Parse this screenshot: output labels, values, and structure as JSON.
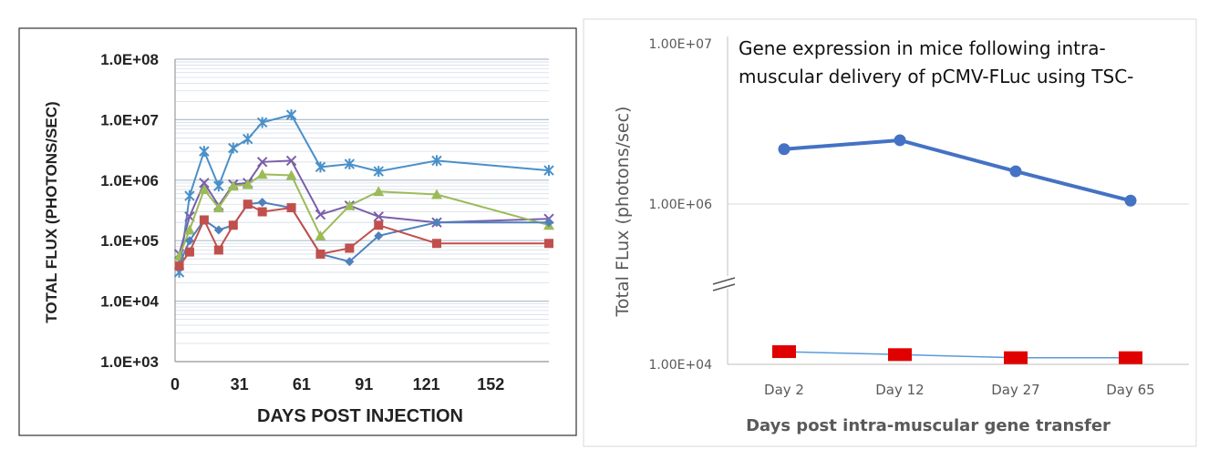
{
  "chart_data": [
    {
      "type": "line",
      "title": "",
      "xlabel": "DAYS POST INJECTION",
      "ylabel": "TOTAL FLUX (PHOTONS/SEC)",
      "y_scale": "log",
      "ylim": [
        1000,
        100000000
      ],
      "xlim": [
        0,
        180
      ],
      "x_tick_labels": [
        "0",
        "31",
        "61",
        "91",
        "121",
        "152"
      ],
      "x_tick_values": [
        0,
        31,
        61,
        91,
        121,
        152
      ],
      "y_tick_labels": [
        "1.0E+03",
        "1.0E+04",
        "1.0E+05",
        "1.0E+06",
        "1.0E+07",
        "1.0E+08"
      ],
      "y_tick_values": [
        1000,
        10000,
        100000,
        1000000,
        10000000,
        100000000
      ],
      "grid": true,
      "legend": "none",
      "series": [
        {
          "color": "#4a90c8",
          "marker": "asterisk",
          "points": [
            [
              2,
              30000
            ],
            [
              7,
              550000
            ],
            [
              14,
              3000000
            ],
            [
              21,
              800000
            ],
            [
              28,
              3400000
            ],
            [
              35,
              4800000
            ],
            [
              42,
              9000000
            ],
            [
              56,
              12000000
            ],
            [
              70,
              1650000
            ],
            [
              84,
              1850000
            ],
            [
              98,
              1400000
            ],
            [
              126,
              2100000
            ],
            [
              180,
              1450000
            ]
          ]
        },
        {
          "color": "#7b5fa8",
          "marker": "x",
          "points": [
            [
              2,
              60000
            ],
            [
              7,
              250000
            ],
            [
              14,
              900000
            ],
            [
              21,
              380000
            ],
            [
              28,
              850000
            ],
            [
              35,
              900000
            ],
            [
              42,
              2000000
            ],
            [
              56,
              2100000
            ],
            [
              70,
              270000
            ],
            [
              84,
              380000
            ],
            [
              98,
              250000
            ],
            [
              126,
              200000
            ],
            [
              180,
              230000
            ]
          ]
        },
        {
          "color": "#9bbb59",
          "marker": "triangle",
          "points": [
            [
              2,
              55000
            ],
            [
              7,
              150000
            ],
            [
              14,
              700000
            ],
            [
              21,
              350000
            ],
            [
              28,
              800000
            ],
            [
              35,
              850000
            ],
            [
              42,
              1250000
            ],
            [
              56,
              1200000
            ],
            [
              70,
              120000
            ],
            [
              84,
              380000
            ],
            [
              98,
              650000
            ],
            [
              126,
              580000
            ],
            [
              180,
              180000
            ]
          ]
        },
        {
          "color": "#4f81bd",
          "marker": "diamond",
          "points": [
            [
              2,
              40000
            ],
            [
              7,
              100000
            ],
            [
              14,
              220000
            ],
            [
              21,
              150000
            ],
            [
              28,
              180000
            ],
            [
              35,
              400000
            ],
            [
              42,
              430000
            ],
            [
              56,
              350000
            ],
            [
              70,
              60000
            ],
            [
              84,
              45000
            ],
            [
              98,
              120000
            ],
            [
              126,
              200000
            ],
            [
              180,
              200000
            ]
          ]
        },
        {
          "color": "#c0504d",
          "marker": "square",
          "points": [
            [
              2,
              38000
            ],
            [
              7,
              65000
            ],
            [
              14,
              220000
            ],
            [
              21,
              70000
            ],
            [
              28,
              180000
            ],
            [
              35,
              400000
            ],
            [
              42,
              300000
            ],
            [
              56,
              350000
            ],
            [
              70,
              60000
            ],
            [
              84,
              75000
            ],
            [
              98,
              180000
            ],
            [
              126,
              90000
            ],
            [
              180,
              90000
            ]
          ]
        }
      ]
    },
    {
      "type": "line",
      "title": "Gene expression in mice following intra-muscular delivery of pCMV-FLuc using TSC-",
      "title_lines": [
        "Gene expression in mice following intra-",
        "muscular delivery of pCMV-FLuc using TSC-"
      ],
      "xlabel": "Days post intra-muscular gene transfer",
      "ylabel": "Total FLux (photons/sec)",
      "y_scale": "log",
      "y_axis_break": true,
      "y_tick_labels": [
        "1.00E+04",
        "1.00E+06",
        "1.00E+07"
      ],
      "categories": [
        "Day 2",
        "Day 12",
        "Day 27",
        "Day 65"
      ],
      "grid": true,
      "legend": "none",
      "series": [
        {
          "color": "#4472c4",
          "marker": "circle",
          "values": [
            2200000,
            2500000,
            1600000,
            1050000
          ]
        },
        {
          "color": "#e00000",
          "marker": "square",
          "line_color": "#5b9bd5",
          "values": [
            12000,
            11500,
            11000,
            11000
          ]
        }
      ]
    }
  ]
}
